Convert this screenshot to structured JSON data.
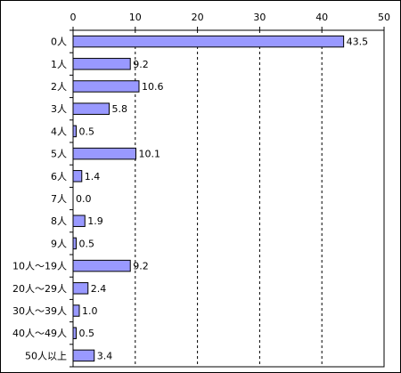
{
  "chart_data": {
    "type": "bar",
    "orientation": "horizontal",
    "categories": [
      "0人",
      "1人",
      "2人",
      "3人",
      "4人",
      "5人",
      "6人",
      "7人",
      "8人",
      "9人",
      "10人～19人",
      "20人～29人",
      "30人～39人",
      "40人～49人",
      "50人以上"
    ],
    "values": [
      43.5,
      9.2,
      10.6,
      5.8,
      0.5,
      10.1,
      1.4,
      0.0,
      1.9,
      0.5,
      9.2,
      2.4,
      1.0,
      0.5,
      3.4
    ],
    "value_labels": [
      "43.5",
      "9.2",
      "10.6",
      "5.8",
      "0.5",
      "10.1",
      "1.4",
      "0.0",
      "1.9",
      "0.5",
      "9.2",
      "2.4",
      "1.0",
      "0.5",
      "3.4"
    ],
    "xlim": [
      0,
      50
    ],
    "xticks": [
      0,
      10,
      20,
      30,
      40,
      50
    ],
    "xtick_labels": [
      "0",
      "10",
      "20",
      "30",
      "40",
      "50"
    ],
    "grid": "vertical-dashed",
    "axis_position": "top",
    "legend": "none",
    "title": "",
    "xlabel": "",
    "ylabel": "",
    "bar_color": "#9999ff",
    "bar_border_color": "#000000"
  }
}
